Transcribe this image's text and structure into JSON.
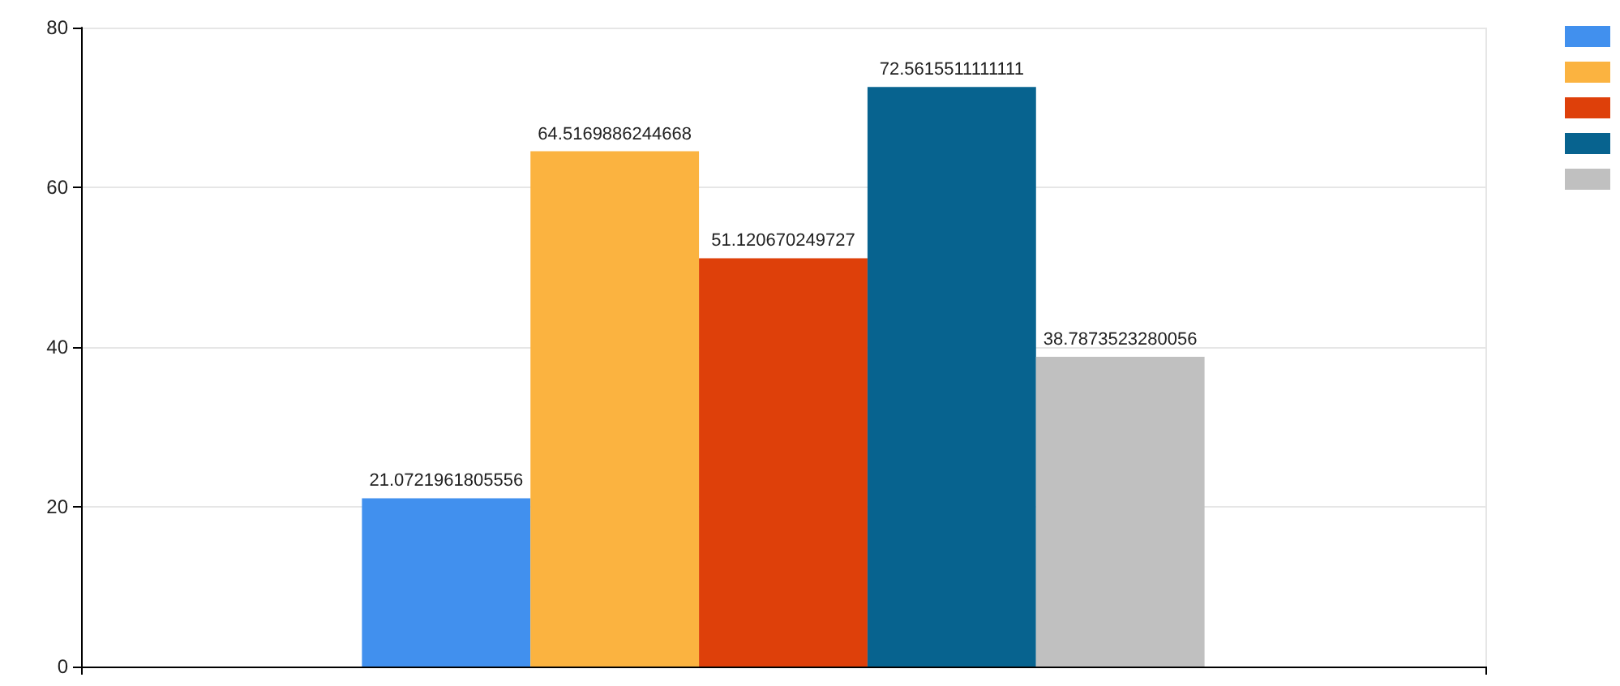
{
  "chart_data": {
    "type": "bar",
    "categories": [
      null
    ],
    "series": [
      {
        "color": "#4190ee",
        "values": [
          21.0721961805556
        ]
      },
      {
        "color": "#fbb340",
        "values": [
          64.5169886244668
        ]
      },
      {
        "color": "#de400a",
        "values": [
          51.120670249727
        ]
      },
      {
        "color": "#07638f",
        "values": [
          72.5615511111111
        ]
      },
      {
        "color": "#c0c0c0",
        "values": [
          38.7873523280056
        ]
      }
    ],
    "ylim": [
      0,
      80
    ],
    "yticks": [
      0,
      20,
      40,
      60,
      80
    ],
    "grid": true,
    "data_labels": true
  }
}
